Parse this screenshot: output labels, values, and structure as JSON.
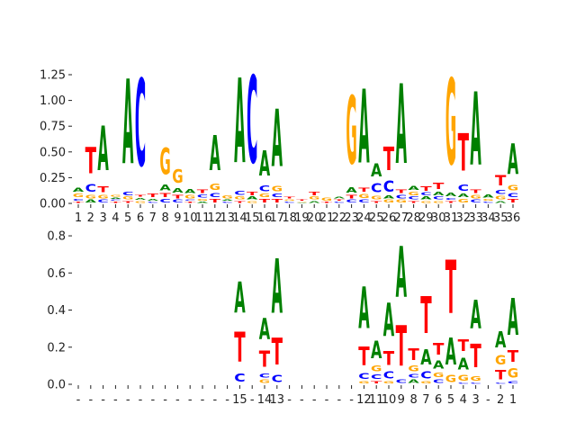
{
  "chart_data": [
    {
      "type": "sequence-logo",
      "title": "",
      "xlabel": "",
      "ylabel": "",
      "ylim": [
        0,
        1.48
      ],
      "yticks": [
        "0.00",
        "0.25",
        "0.50",
        "0.75",
        "1.00",
        "1.25"
      ],
      "ytick_values": [
        0,
        0.25,
        0.5,
        0.75,
        1.0,
        1.25
      ],
      "xtick_labels": [
        "1",
        "2",
        "3",
        "4",
        "5",
        "6",
        "7",
        "8",
        "9",
        "10",
        "11",
        "12",
        "13",
        "14",
        "15",
        "16",
        "17",
        "18",
        "19",
        "20",
        "21",
        "22",
        "23",
        "24",
        "25",
        "26",
        "27",
        "28",
        "29",
        "30",
        "31",
        "32",
        "33",
        "34",
        "35",
        "36"
      ],
      "grid": false,
      "letter_colors": {
        "A": "#008000",
        "C": "#0000ff",
        "G": "#ffa500",
        "T": "#ff0000"
      },
      "stacks": [
        {
          "T": 0.02,
          "C": 0.03,
          "G": 0.05,
          "A": 0.06
        },
        {
          "G": 0.05,
          "A": 0.04,
          "C": 0.12,
          "T": 0.41
        },
        {
          "C": 0.04,
          "G": 0.05,
          "T": 0.09,
          "A": 0.69
        },
        {
          "T": 0.02,
          "C": 0.02,
          "A": 0.02,
          "G": 0.03
        },
        {
          "T": 0.03,
          "G": 0.04,
          "C": 0.05,
          "A": 1.32
        },
        {
          "G": 0.03,
          "A": 0.03,
          "T": 0.03,
          "C": 1.36
        },
        {
          "C": 0.02,
          "A": 0.03,
          "T": 0.05
        },
        {
          "C": 0.05,
          "T": 0.06,
          "A": 0.09,
          "G": 0.41
        },
        {
          "C": 0.04,
          "T": 0.05,
          "A": 0.07,
          "G": 0.21
        },
        {
          "T": 0.02,
          "C": 0.02,
          "G": 0.05,
          "A": 0.06
        },
        {
          "A": 0.02,
          "G": 0.03,
          "C": 0.04,
          "T": 0.05
        },
        {
          "T": 0.05,
          "C": 0.06,
          "G": 0.1,
          "A": 0.55
        },
        {
          "C": 0.02,
          "A": 0.02,
          "G": 0.04
        },
        {
          "T": 0.03,
          "G": 0.04,
          "C": 0.06,
          "A": 1.32
        },
        {
          "G": 0.03,
          "A": 0.04,
          "T": 0.05,
          "C": 1.36
        },
        {
          "T": 0.05,
          "G": 0.05,
          "C": 0.09,
          "A": 0.39
        },
        {
          "T": 0.05,
          "C": 0.05,
          "G": 0.08,
          "A": 0.89
        },
        {
          "C": 0.02,
          "G": 0.02,
          "T": 0.03
        },
        {
          "A": 0.01,
          "G": 0.01,
          "T": 0.02
        },
        {
          "A": 0.03,
          "G": 0.04,
          "T": 0.05
        },
        {
          "T": 0.02,
          "G": 0.04
        },
        {
          "C": 0.02,
          "T": 0.02,
          "A": 0.03
        },
        {
          "C": 0.04,
          "T": 0.05,
          "A": 0.08,
          "G": 1.06
        },
        {
          "C": 0.04,
          "G": 0.06,
          "T": 0.06,
          "A": 1.15
        },
        {
          "T": 0.03,
          "G": 0.05,
          "C": 0.14,
          "A": 0.2
        },
        {
          "G": 0.04,
          "A": 0.04,
          "C": 0.17,
          "T": 0.36
        },
        {
          "G": 0.04,
          "C": 0.05,
          "T": 0.05,
          "A": 1.24
        },
        {
          "T": 0.03,
          "C": 0.04,
          "G": 0.05,
          "A": 0.06
        },
        {
          "G": 0.03,
          "A": 0.04,
          "C": 0.04,
          "T": 0.07
        },
        {
          "G": 0.03,
          "C": 0.04,
          "A": 0.05,
          "T": 0.1
        },
        {
          "T": 0.03,
          "C": 0.03,
          "A": 0.05,
          "G": 1.34
        },
        {
          "G": 0.05,
          "A": 0.05,
          "C": 0.1,
          "T": 0.58
        },
        {
          "G": 0.05,
          "C": 0.04,
          "T": 0.05,
          "A": 1.14
        },
        {
          "C": 0.02,
          "G": 0.03,
          "A": 0.04
        },
        {
          "A": 0.03,
          "G": 0.05,
          "C": 0.06,
          "T": 0.16
        },
        {
          "T": 0.05,
          "C": 0.06,
          "G": 0.08,
          "A": 0.47
        }
      ]
    },
    {
      "type": "sequence-logo",
      "title": "",
      "xlabel": "",
      "ylabel": "",
      "ylim": [
        0,
        0.82
      ],
      "yticks": [
        "0.0",
        "0.2",
        "0.4",
        "0.6",
        "0.8"
      ],
      "ytick_values": [
        0,
        0.2,
        0.4,
        0.6,
        0.8
      ],
      "xtick_labels": [
        "-",
        "-",
        "-",
        "-",
        "-",
        "-",
        "-",
        "-",
        "-",
        "-",
        "-",
        "-",
        "-",
        "15",
        "-",
        "14",
        "13",
        "-",
        "-",
        "-",
        "-",
        "-",
        "-",
        "12",
        "11",
        "10",
        "9",
        "8",
        "7",
        "6",
        "5",
        "4",
        "3",
        "-",
        "2",
        "1"
      ],
      "grid": false,
      "letter_colors": {
        "A": "#008000",
        "C": "#0000ff",
        "G": "#ffa500",
        "T": "#ff0000"
      },
      "stacks": [
        {},
        {},
        {},
        {},
        {},
        {},
        {},
        {},
        {},
        {},
        {},
        {},
        {},
        {
          "C": 0.07,
          "T": 0.26,
          "A": 0.27
        },
        {},
        {
          "C": 0.035,
          "G": 0.03,
          "T": 0.14,
          "A": 0.18
        },
        {
          "C": 0.06,
          "T": 0.23,
          "A": 0.47
        },
        {},
        {},
        {},
        {},
        {},
        {},
        {
          "G": 0.02,
          "C": 0.05,
          "T": 0.16,
          "A": 0.36
        },
        {
          "T": 0.02,
          "C": 0.04,
          "G": 0.05,
          "A": 0.15
        },
        {
          "G": 0.02,
          "C": 0.06,
          "T": 0.12,
          "A": 0.29
        },
        {
          "C": 0.03,
          "T": 0.35,
          "A": 0.44
        },
        {
          "A": 0.03,
          "C": 0.03,
          "G": 0.05,
          "T": 0.1
        },
        {
          "G": 0.02,
          "C": 0.06,
          "A": 0.13,
          "T": 0.32
        },
        {
          "C": 0.03,
          "G": 0.04,
          "A": 0.07,
          "T": 0.1
        },
        {
          "G": 0.06,
          "A": 0.23,
          "T": 0.46
        },
        {
          "C": 0.01,
          "G": 0.05,
          "A": 0.1,
          "T": 0.1
        },
        {
          "C": 0.01,
          "G": 0.04,
          "T": 0.2,
          "A": 0.25
        },
        {},
        {
          "C": 0.01,
          "T": 0.08,
          "G": 0.08,
          "A": 0.14
        },
        {
          "C": 0.02,
          "G": 0.08,
          "T": 0.1,
          "A": 0.32
        }
      ]
    }
  ]
}
